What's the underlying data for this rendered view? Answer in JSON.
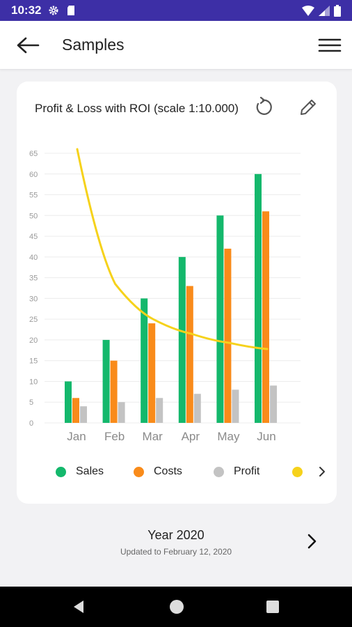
{
  "status_bar": {
    "time": "10:32"
  },
  "app_bar": {
    "title": "Samples"
  },
  "card": {
    "title": "Profit & Loss with ROI (scale 1:10.000)"
  },
  "chart_data": {
    "type": "bar",
    "categories": [
      "Jan",
      "Feb",
      "Mar",
      "Apr",
      "May",
      "Jun"
    ],
    "ylim": [
      0,
      65
    ],
    "yticks": [
      0,
      5,
      10,
      15,
      20,
      25,
      30,
      35,
      40,
      45,
      50,
      55,
      60,
      65
    ],
    "series": [
      {
        "name": "Sales",
        "kind": "bar",
        "color": "#14b86c",
        "values": [
          10,
          20,
          30,
          40,
          50,
          60
        ]
      },
      {
        "name": "Costs",
        "kind": "bar",
        "color": "#f98b1a",
        "values": [
          6,
          15,
          24,
          33,
          42,
          51
        ]
      },
      {
        "name": "Profit",
        "kind": "bar",
        "color": "#c3c3c3",
        "values": [
          4,
          5,
          6,
          7,
          8,
          9
        ]
      },
      {
        "kind": "line",
        "color": "#f6d21b",
        "values": [
          66,
          33.5,
          25,
          21.5,
          19.3,
          17.8
        ]
      }
    ],
    "grid": true,
    "legend": "bottom"
  },
  "legend": {
    "items": [
      {
        "label": "Sales",
        "color": "#14b86c"
      },
      {
        "label": "Costs",
        "color": "#f98b1a"
      },
      {
        "label": "Profit",
        "color": "#c3c3c3"
      },
      {
        "label": "",
        "color": "#f6d21b"
      }
    ]
  },
  "footer": {
    "year_label": "Year 2020",
    "updated_label": "Updated to  February 12, 2020"
  },
  "icons": {
    "back": "arrow-left-icon",
    "menu": "hamburger-menu-icon",
    "refresh": "refresh-icon",
    "edit": "pencil-icon",
    "next": "chevron-right-icon"
  }
}
